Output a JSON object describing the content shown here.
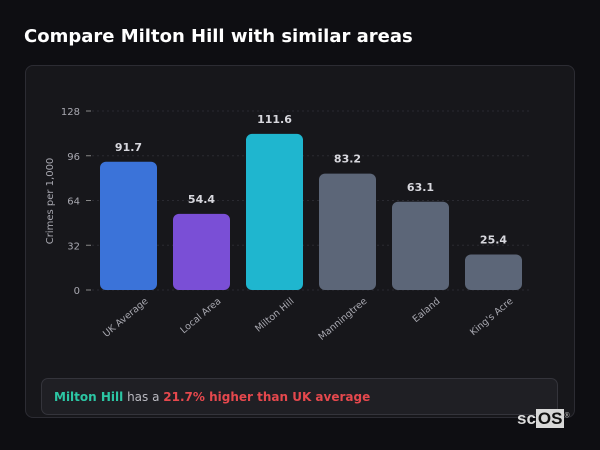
{
  "title": "Compare Milton Hill with similar areas",
  "chart_data": {
    "type": "bar",
    "categories": [
      "UK Average",
      "Local Area",
      "Milton Hill",
      "Manningtree",
      "Ealand",
      "King's Acre"
    ],
    "values": [
      91.7,
      54.4,
      111.6,
      83.2,
      63.1,
      25.4
    ],
    "value_labels": [
      "91.7",
      "54.4",
      "111.6",
      "83.2",
      "63.1",
      "25.4"
    ],
    "colors": [
      "#3b73d9",
      "#7a4fd6",
      "#1fb6cf",
      "#5c6678",
      "#5c6678",
      "#5c6678"
    ],
    "ylabel": "Crimes per 1,000",
    "xlabel": "",
    "ylim": [
      0,
      128
    ],
    "yticks": [
      0,
      32,
      64,
      96,
      128
    ],
    "grid": true
  },
  "summary": {
    "area": "Milton Hill",
    "middle": " has a ",
    "comparison": "21.7% higher than UK average"
  },
  "logo": {
    "text_a": "sc",
    "text_b": "OS",
    "mark": "®"
  }
}
